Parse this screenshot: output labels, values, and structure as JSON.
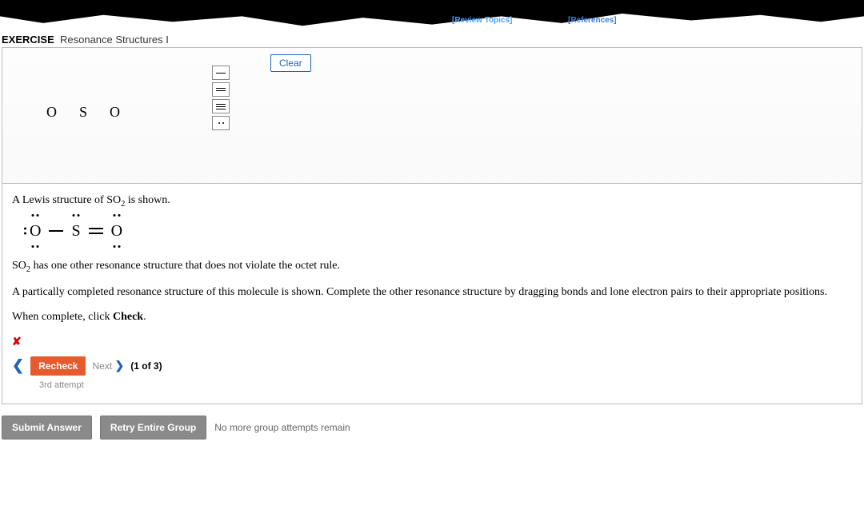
{
  "top_links": {
    "review": "[Review Topics]",
    "references": "[References]"
  },
  "header": {
    "exercise_label": "EXERCISE",
    "title": "Resonance Structures I"
  },
  "canvas": {
    "clear_label": "Clear",
    "atoms": [
      "O",
      "S",
      "O"
    ]
  },
  "question": {
    "intro_html": "A Lewis structure of SO",
    "intro_sub": "2",
    "intro_tail": " is shown.",
    "line2_pre": "SO",
    "line2_sub": "2",
    "line2_tail": " has one other resonance structure that does not violate the octet rule.",
    "line3": "A partically completed resonance structure of this molecule is shown. Complete the other resonance structure by dragging bonds and lone electron pairs to their appropriate positions.",
    "line4_pre": "When complete, click ",
    "line4_bold": "Check",
    "line4_tail": "."
  },
  "feedback": {
    "x": "✘",
    "recheck": "Recheck",
    "next": "Next",
    "counter": "(1 of 3)",
    "attempt": "3rd attempt"
  },
  "footer": {
    "submit": "Submit Answer",
    "retry": "Retry Entire Group",
    "msg": "No more group attempts remain"
  },
  "colors": {
    "link": "#4aa0ff",
    "primary": "#1e63b8",
    "recheck": "#e65a2e",
    "error": "#d40000",
    "gray_btn": "#8a8a8a"
  }
}
